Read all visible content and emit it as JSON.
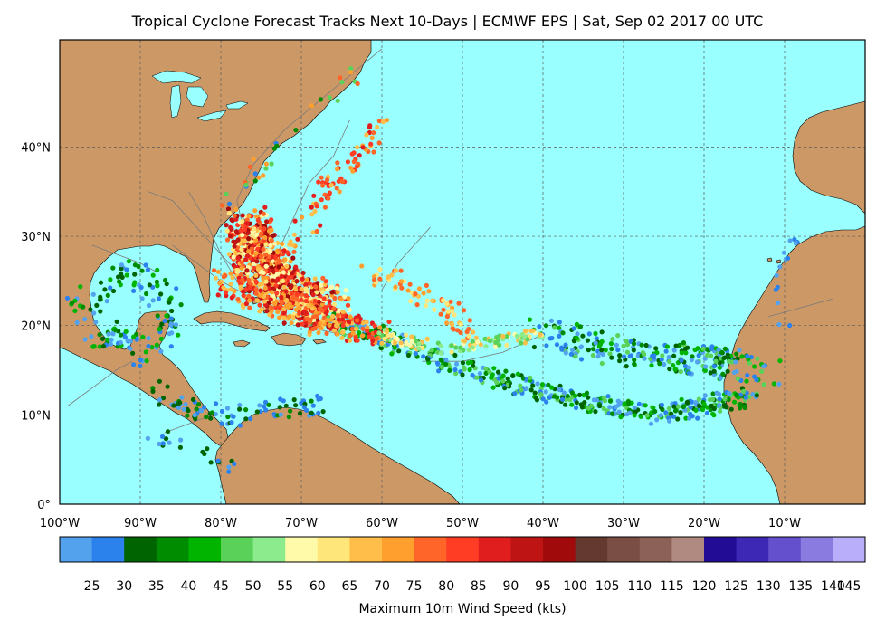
{
  "title": "Tropical Cyclone Forecast Tracks Next 10-Days | ECMWF EPS | Sat, Sep 02 2017 00 UTC",
  "map": {
    "lon_range": [
      -100,
      0
    ],
    "lat_range": [
      0,
      52
    ],
    "gridlines": true,
    "lon_ticks": [
      {
        "value": -100,
        "label": "100°W"
      },
      {
        "value": -90,
        "label": "90°W"
      },
      {
        "value": -80,
        "label": "80°W"
      },
      {
        "value": -70,
        "label": "70°W"
      },
      {
        "value": -60,
        "label": "60°W"
      },
      {
        "value": -50,
        "label": "50°W"
      },
      {
        "value": -40,
        "label": "40°W"
      },
      {
        "value": -30,
        "label": "30°W"
      },
      {
        "value": -20,
        "label": "20°W"
      },
      {
        "value": -10,
        "label": "10°W"
      }
    ],
    "lat_ticks": [
      {
        "value": 0,
        "label": "0°"
      },
      {
        "value": 10,
        "label": "10°N"
      },
      {
        "value": 20,
        "label": "20°N"
      },
      {
        "value": 30,
        "label": "30°N"
      },
      {
        "value": 40,
        "label": "40°N"
      }
    ],
    "colors": {
      "ocean": "#99ffff",
      "land": "#cc9966",
      "coast": "#000000",
      "grid": "#5a5a5a",
      "track_line": "#7a7a7a"
    }
  },
  "colorbar": {
    "label": "Maximum 10m Wind Speed (kts)",
    "bins": [
      {
        "label": "",
        "color": "#52a2ee"
      },
      {
        "label": "25",
        "color": "#2c82ec"
      },
      {
        "label": "30",
        "color": "#006400"
      },
      {
        "label": "35",
        "color": "#008c00"
      },
      {
        "label": "40",
        "color": "#00b400"
      },
      {
        "label": "45",
        "color": "#5ad25a"
      },
      {
        "label": "50",
        "color": "#8ceb8c"
      },
      {
        "label": "55",
        "color": "#fffaaa"
      },
      {
        "label": "60",
        "color": "#ffe67a"
      },
      {
        "label": "65",
        "color": "#ffbe4a"
      },
      {
        "label": "70",
        "color": "#ffa02e"
      },
      {
        "label": "75",
        "color": "#ff6428"
      },
      {
        "label": "80",
        "color": "#ff3c24"
      },
      {
        "label": "85",
        "color": "#e11e1e"
      },
      {
        "label": "90",
        "color": "#be1414"
      },
      {
        "label": "95",
        "color": "#a00a0a"
      },
      {
        "label": "100",
        "color": "#643a30"
      },
      {
        "label": "105",
        "color": "#7a4e44"
      },
      {
        "label": "110",
        "color": "#8c6258"
      },
      {
        "label": "115",
        "color": "#b08a80"
      },
      {
        "label": "120",
        "color": "#220c96"
      },
      {
        "label": "125",
        "color": "#3c28b4"
      },
      {
        "label": "130",
        "color": "#6450cd"
      },
      {
        "label": "135",
        "color": "#8a7be1"
      },
      {
        "label": "140",
        "color": "#b8aefa"
      }
    ],
    "last_label": "145"
  },
  "track_groups": [
    {
      "name": "gulf",
      "path": [
        [
          -98,
          21
        ],
        [
          -96,
          23
        ],
        [
          -94,
          25
        ],
        [
          -91,
          26
        ],
        [
          -89,
          25
        ],
        [
          -87,
          23
        ],
        [
          -86,
          21
        ],
        [
          -88,
          18
        ],
        [
          -90,
          17
        ],
        [
          -92,
          18
        ],
        [
          -94,
          19
        ],
        [
          -96,
          19
        ]
      ],
      "spread": 1.6,
      "count": 150,
      "colors": [
        "#52a2ee",
        "#2c82ec",
        "#006400",
        "#008c00",
        "#00b400"
      ]
    },
    {
      "name": "east-atlantic",
      "path": [
        [
          -40,
          19
        ],
        [
          -35,
          18
        ],
        [
          -30,
          17
        ],
        [
          -25,
          16.5
        ],
        [
          -20,
          16
        ],
        [
          -16,
          15.5
        ],
        [
          -12,
          15
        ]
      ],
      "spread": 1.7,
      "count": 260,
      "colors": [
        "#52a2ee",
        "#2c82ec",
        "#006400",
        "#008c00",
        "#00b400",
        "#5ad25a"
      ]
    },
    {
      "name": "main-development",
      "path": [
        [
          -14,
          12
        ],
        [
          -20,
          11
        ],
        [
          -26,
          10
        ],
        [
          -32,
          11
        ],
        [
          -38,
          12
        ],
        [
          -45,
          14
        ],
        [
          -52,
          16
        ],
        [
          -58,
          18
        ],
        [
          -64,
          20
        ],
        [
          -70,
          22
        ]
      ],
      "spread": 1.1,
      "count": 520,
      "colors": [
        "#52a2ee",
        "#2c82ec",
        "#006400",
        "#008c00",
        "#00b400",
        "#5ad25a"
      ]
    },
    {
      "name": "caribbean-south",
      "path": [
        [
          -88,
          13
        ],
        [
          -84,
          11
        ],
        [
          -80,
          10
        ],
        [
          -76,
          10
        ],
        [
          -72,
          11
        ],
        [
          -68,
          11
        ]
      ],
      "spread": 1.2,
      "count": 90,
      "colors": [
        "#52a2ee",
        "#2c82ec",
        "#006400",
        "#008c00"
      ]
    },
    {
      "name": "recurve-cluster",
      "path": [
        [
          -66,
          21
        ],
        [
          -70,
          23
        ],
        [
          -73,
          25
        ],
        [
          -75,
          27
        ],
        [
          -76,
          29
        ],
        [
          -77,
          31
        ]
      ],
      "spread": 2.6,
      "count": 900,
      "colors": [
        "#ff3c24",
        "#e11e1e",
        "#ff6428",
        "#be1414",
        "#ffa02e",
        "#a00a0a",
        "#ffbe4a",
        "#ffe67a",
        "#fffaaa"
      ]
    },
    {
      "name": "caribbean-track",
      "path": [
        [
          -60,
          19
        ],
        [
          -65,
          20
        ],
        [
          -70,
          21.5
        ],
        [
          -75,
          23
        ],
        [
          -80,
          25
        ]
      ],
      "spread": 1.4,
      "count": 220,
      "colors": [
        "#ff3c24",
        "#ff6428",
        "#ffa02e",
        "#ffbe4a",
        "#e11e1e"
      ]
    },
    {
      "name": "yellow-streak",
      "path": [
        [
          -40,
          19
        ],
        [
          -44,
          18.5
        ],
        [
          -48,
          18
        ],
        [
          -52,
          17.5
        ],
        [
          -56,
          18
        ],
        [
          -60,
          19
        ]
      ],
      "spread": 0.7,
      "count": 120,
      "colors": [
        "#fffaaa",
        "#ffe67a",
        "#8ceb8c",
        "#5ad25a",
        "#ffbe4a"
      ]
    },
    {
      "name": "north-streaks",
      "path": [
        [
          -72,
          28
        ],
        [
          -70,
          31
        ],
        [
          -68,
          34
        ],
        [
          -66,
          36
        ],
        [
          -64,
          38
        ],
        [
          -62,
          40
        ],
        [
          -60,
          43
        ]
      ],
      "spread": 1.5,
      "count": 80,
      "colors": [
        "#ff3c24",
        "#ff6428",
        "#ffa02e",
        "#ffbe4a",
        "#e11e1e"
      ]
    },
    {
      "name": "mid-atlantic-arcs",
      "path": [
        [
          -62,
          26
        ],
        [
          -58,
          25
        ],
        [
          -54,
          23
        ],
        [
          -51,
          21
        ],
        [
          -49,
          19
        ]
      ],
      "spread": 1.2,
      "count": 70,
      "colors": [
        "#ffbe4a",
        "#ffa02e",
        "#ffe67a",
        "#ff6428"
      ]
    },
    {
      "name": "coastal-north",
      "path": [
        [
          -80,
          33
        ],
        [
          -77,
          36
        ],
        [
          -74,
          39
        ],
        [
          -70,
          42
        ],
        [
          -67,
          45
        ],
        [
          -63,
          48
        ]
      ],
      "spread": 1.0,
      "count": 30,
      "colors": [
        "#ffa02e",
        "#ff6428",
        "#5ad25a",
        "#008c00",
        "#2c82ec"
      ]
    },
    {
      "name": "iberia-west",
      "path": [
        [
          -10,
          20
        ],
        [
          -11,
          24
        ],
        [
          -10,
          27
        ],
        [
          -9,
          30
        ]
      ],
      "spread": 1.0,
      "count": 14,
      "colors": [
        "#52a2ee",
        "#2c82ec"
      ]
    },
    {
      "name": "colombia-pacific",
      "path": [
        [
          -89,
          8
        ],
        [
          -86,
          7
        ],
        [
          -83,
          6
        ],
        [
          -80,
          5
        ],
        [
          -78,
          4
        ]
      ],
      "spread": 0.8,
      "count": 20,
      "colors": [
        "#52a2ee",
        "#2c82ec",
        "#006400"
      ]
    }
  ],
  "track_lines": [
    [
      [
        -74,
        22
      ],
      [
        -76,
        26
      ],
      [
        -77,
        30
      ],
      [
        -78,
        34
      ],
      [
        -76,
        38
      ],
      [
        -72,
        42
      ],
      [
        -68,
        45
      ],
      [
        -64,
        48
      ],
      [
        -60,
        51
      ]
    ],
    [
      [
        -72,
        24
      ],
      [
        -73,
        28
      ],
      [
        -71,
        32
      ],
      [
        -69,
        36
      ],
      [
        -66,
        39
      ],
      [
        -64,
        43
      ]
    ],
    [
      [
        -75,
        24
      ],
      [
        -79,
        27
      ],
      [
        -83,
        31
      ],
      [
        -86,
        34
      ],
      [
        -89,
        35
      ]
    ],
    [
      [
        -78,
        25
      ],
      [
        -80,
        28
      ],
      [
        -82,
        32
      ],
      [
        -84,
        35
      ]
    ],
    [
      [
        -99,
        11
      ],
      [
        -96,
        13
      ],
      [
        -93,
        15
      ],
      [
        -91,
        16
      ]
    ],
    [
      [
        -87,
        8
      ],
      [
        -84,
        9
      ],
      [
        -81,
        10
      ]
    ],
    [
      [
        -12,
        21
      ],
      [
        -8,
        22
      ],
      [
        -4,
        23
      ]
    ],
    [
      [
        -40,
        19
      ],
      [
        -45,
        17
      ],
      [
        -50,
        16
      ],
      [
        -55,
        16
      ]
    ],
    [
      [
        -60,
        19
      ],
      [
        -65,
        19
      ],
      [
        -70,
        20
      ]
    ],
    [
      [
        -76,
        23
      ],
      [
        -80,
        25
      ],
      [
        -83,
        27
      ],
      [
        -86,
        29
      ]
    ],
    [
      [
        -88,
        26
      ],
      [
        -90,
        27
      ],
      [
        -93,
        28
      ],
      [
        -96,
        29
      ]
    ],
    [
      [
        -60,
        24
      ],
      [
        -58,
        27
      ],
      [
        -56,
        29
      ],
      [
        -54,
        31
      ]
    ]
  ]
}
